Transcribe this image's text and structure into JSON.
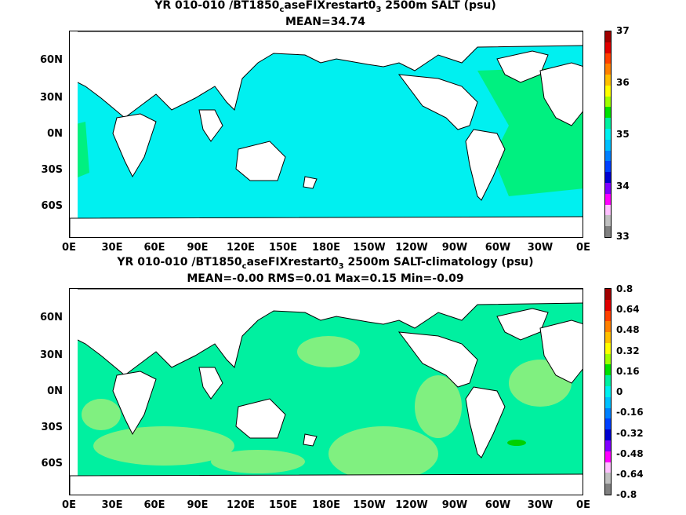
{
  "panels": [
    {
      "title_a": "YR 010-010 /BT1850",
      "title_sub1": "c",
      "title_b": "aseFIXrestart0",
      "title_sub2": "3",
      "title_c": " 2500m SALT (psu)",
      "subtitle": "MEAN=34.74",
      "ocean_color": "#00f0f0",
      "colorbar_labels": [
        "37",
        "36",
        "35",
        "34",
        "33"
      ]
    },
    {
      "title_a": "YR 010-010 /BT1850",
      "title_sub1": "c",
      "title_b": "aseFIXrestart0",
      "title_sub2": "3",
      "title_c": " 2500m SALT-climatology (psu)",
      "subtitle": "MEAN=-0.00   RMS=0.01   Max=0.15   Min=-0.09",
      "ocean_color": "#00f0a0",
      "colorbar_labels": [
        "0.8",
        "0.64",
        "0.48",
        "0.32",
        "0.16",
        "0",
        "-0.16",
        "-0.32",
        "-0.48",
        "-0.64",
        "-0.8"
      ]
    }
  ],
  "lat_labels": [
    "60N",
    "30N",
    "0N",
    "30S",
    "60S"
  ],
  "lon_labels": [
    "0E",
    "30E",
    "60E",
    "90E",
    "120E",
    "150E",
    "180E",
    "150W",
    "120W",
    "90W",
    "60W",
    "30W",
    "0E"
  ],
  "colorbar_colors": [
    "#a00000",
    "#e00000",
    "#ff4000",
    "#ff8000",
    "#ffc000",
    "#ffff00",
    "#a0ff00",
    "#00e000",
    "#00f0a0",
    "#00f0f0",
    "#00c0ff",
    "#0080ff",
    "#0040ff",
    "#0000d0",
    "#8000ff",
    "#ff00ff",
    "#ffc0ff",
    "#c0c0c0",
    "#808080"
  ]
}
